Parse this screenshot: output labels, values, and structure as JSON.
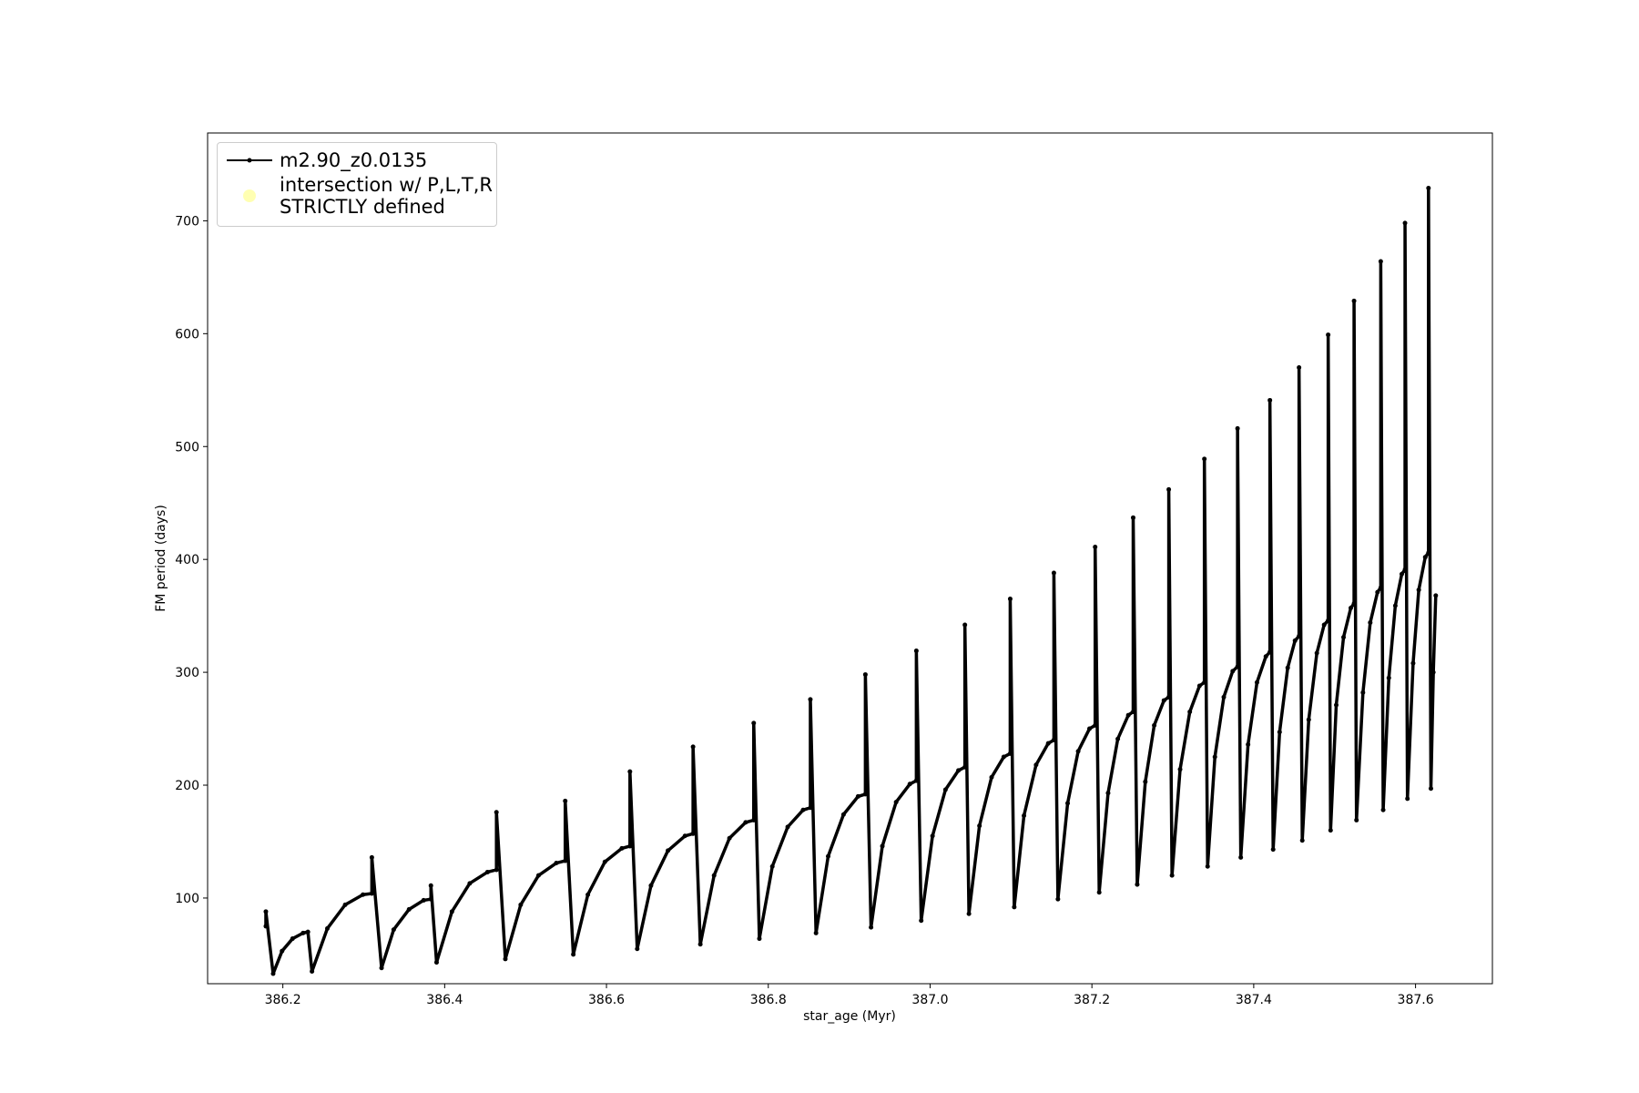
{
  "chart_data": {
    "type": "line",
    "xlabel": "star_age (Myr)",
    "ylabel": "FM period (days)",
    "xlim": [
      386.107,
      387.695
    ],
    "ylim": [
      24.1,
      777.8
    ],
    "xticks": [
      386.2,
      386.4,
      386.6,
      386.8,
      {
        "value": 387,
        "label": "387.0"
      },
      387.2,
      387.4,
      387.6
    ],
    "yticks": [
      100,
      200,
      300,
      400,
      500,
      600,
      700
    ],
    "legend": "upper left",
    "series": [
      {
        "name": "m2.90_z0.0135",
        "color": "#000000",
        "x": [
          386.179,
          386.179,
          386.188,
          386.199,
          386.212,
          386.225,
          386.231,
          386.236,
          386.255,
          386.277,
          386.299,
          386.31,
          386.31,
          386.322,
          386.337,
          386.356,
          386.374,
          386.383,
          386.383,
          386.39,
          386.409,
          386.431,
          386.453,
          386.464,
          386.464,
          386.475,
          386.494,
          386.516,
          386.538,
          386.549,
          386.549,
          386.559,
          386.577,
          386.598,
          386.619,
          386.629,
          386.629,
          386.638,
          386.655,
          386.676,
          386.697,
          386.707,
          386.707,
          386.716,
          386.733,
          386.752,
          386.772,
          386.782,
          386.782,
          386.789,
          386.805,
          386.824,
          386.843,
          386.852,
          386.852,
          386.859,
          386.874,
          386.893,
          386.911,
          386.92,
          386.92,
          386.927,
          386.941,
          386.958,
          386.975,
          386.983,
          386.983,
          386.989,
          387.003,
          387.019,
          387.035,
          387.043,
          387.043,
          387.048,
          387.061,
          387.076,
          387.091,
          387.099,
          387.099,
          387.104,
          387.116,
          387.131,
          387.146,
          387.153,
          387.153,
          387.158,
          387.17,
          387.183,
          387.197,
          387.204,
          387.204,
          387.209,
          387.22,
          387.232,
          387.245,
          387.251,
          387.251,
          387.256,
          387.266,
          387.277,
          387.289,
          387.295,
          387.295,
          387.299,
          387.309,
          387.321,
          387.333,
          387.339,
          387.339,
          387.343,
          387.352,
          387.363,
          387.374,
          387.38,
          387.38,
          387.384,
          387.393,
          387.404,
          387.415,
          387.42,
          387.42,
          387.424,
          387.432,
          387.442,
          387.451,
          387.456,
          387.456,
          387.46,
          387.468,
          387.478,
          387.487,
          387.492,
          387.492,
          387.495,
          387.502,
          387.511,
          387.52,
          387.524,
          387.524,
          387.527,
          387.535,
          387.544,
          387.553,
          387.557,
          387.557,
          387.56,
          387.567,
          387.575,
          387.583,
          387.587,
          387.587,
          387.59,
          387.597,
          387.604,
          387.612,
          387.616,
          387.616,
          387.619,
          387.622,
          387.625
        ],
        "values": [
          75,
          88,
          33,
          53,
          64,
          69,
          70,
          35,
          73,
          94,
          103,
          104,
          136,
          38,
          72,
          90,
          98,
          99,
          111,
          43,
          88,
          113,
          123,
          125,
          176,
          46,
          94,
          120,
          131,
          133,
          186,
          50,
          103,
          132,
          144,
          146,
          212,
          55,
          111,
          142,
          155,
          157,
          234,
          59,
          120,
          153,
          167,
          169,
          255,
          64,
          128,
          163,
          178,
          180,
          276,
          69,
          137,
          174,
          190,
          192,
          298,
          74,
          146,
          185,
          201,
          204,
          319,
          80,
          155,
          196,
          213,
          216,
          342,
          86,
          164,
          207,
          225,
          228,
          365,
          92,
          173,
          218,
          237,
          240,
          388,
          99,
          184,
          230,
          250,
          253,
          411,
          105,
          193,
          241,
          262,
          265,
          437,
          112,
          203,
          253,
          275,
          278,
          462,
          120,
          214,
          265,
          288,
          291,
          489,
          128,
          225,
          278,
          301,
          305,
          516,
          136,
          236,
          291,
          314,
          318,
          541,
          143,
          247,
          304,
          328,
          332,
          570,
          151,
          258,
          317,
          342,
          346,
          599,
          160,
          271,
          331,
          357,
          361,
          629,
          169,
          282,
          344,
          371,
          375,
          664,
          178,
          295,
          359,
          387,
          391,
          698,
          188,
          308,
          373,
          402,
          406,
          729,
          197,
          300,
          368
        ]
      },
      {
        "name": "intersection w/ P,L,T,R\nSTRICTLY defined",
        "color": "#ffffb2",
        "marker": "scatter",
        "x": [],
        "values": []
      }
    ]
  }
}
